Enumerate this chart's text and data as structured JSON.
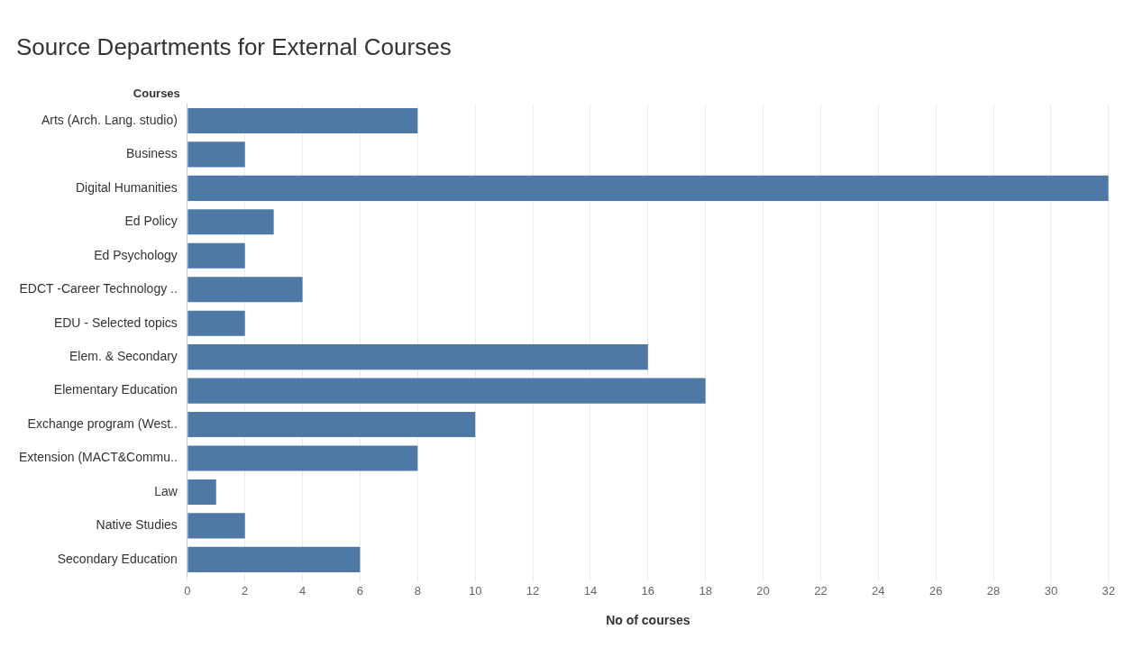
{
  "chart_data": {
    "type": "bar",
    "orientation": "horizontal",
    "title": "Source Departments for External Courses",
    "xlabel": "No of courses",
    "ylabel": "Courses",
    "categories": [
      "Arts (Arch. Lang. studio)",
      "Business",
      "Digital Humanities",
      "Ed Policy",
      "Ed Psychology",
      "EDCT -Career Technology ..",
      "EDU - Selected topics",
      "Elem. & Secondary",
      "Elementary Education",
      "Exchange program (West..",
      "Extension (MACT&Commu..",
      "Law",
      "Native Studies",
      "Secondary Education"
    ],
    "values": [
      8,
      2,
      32,
      3,
      2,
      4,
      2,
      16,
      18,
      10,
      8,
      1,
      2,
      6
    ],
    "color": "#4e79a7",
    "xlim": [
      0,
      32
    ],
    "xticks": [
      0,
      2,
      4,
      6,
      8,
      10,
      12,
      14,
      16,
      18,
      20,
      22,
      24,
      26,
      28,
      30,
      32
    ],
    "grid": "x",
    "legend": false
  }
}
